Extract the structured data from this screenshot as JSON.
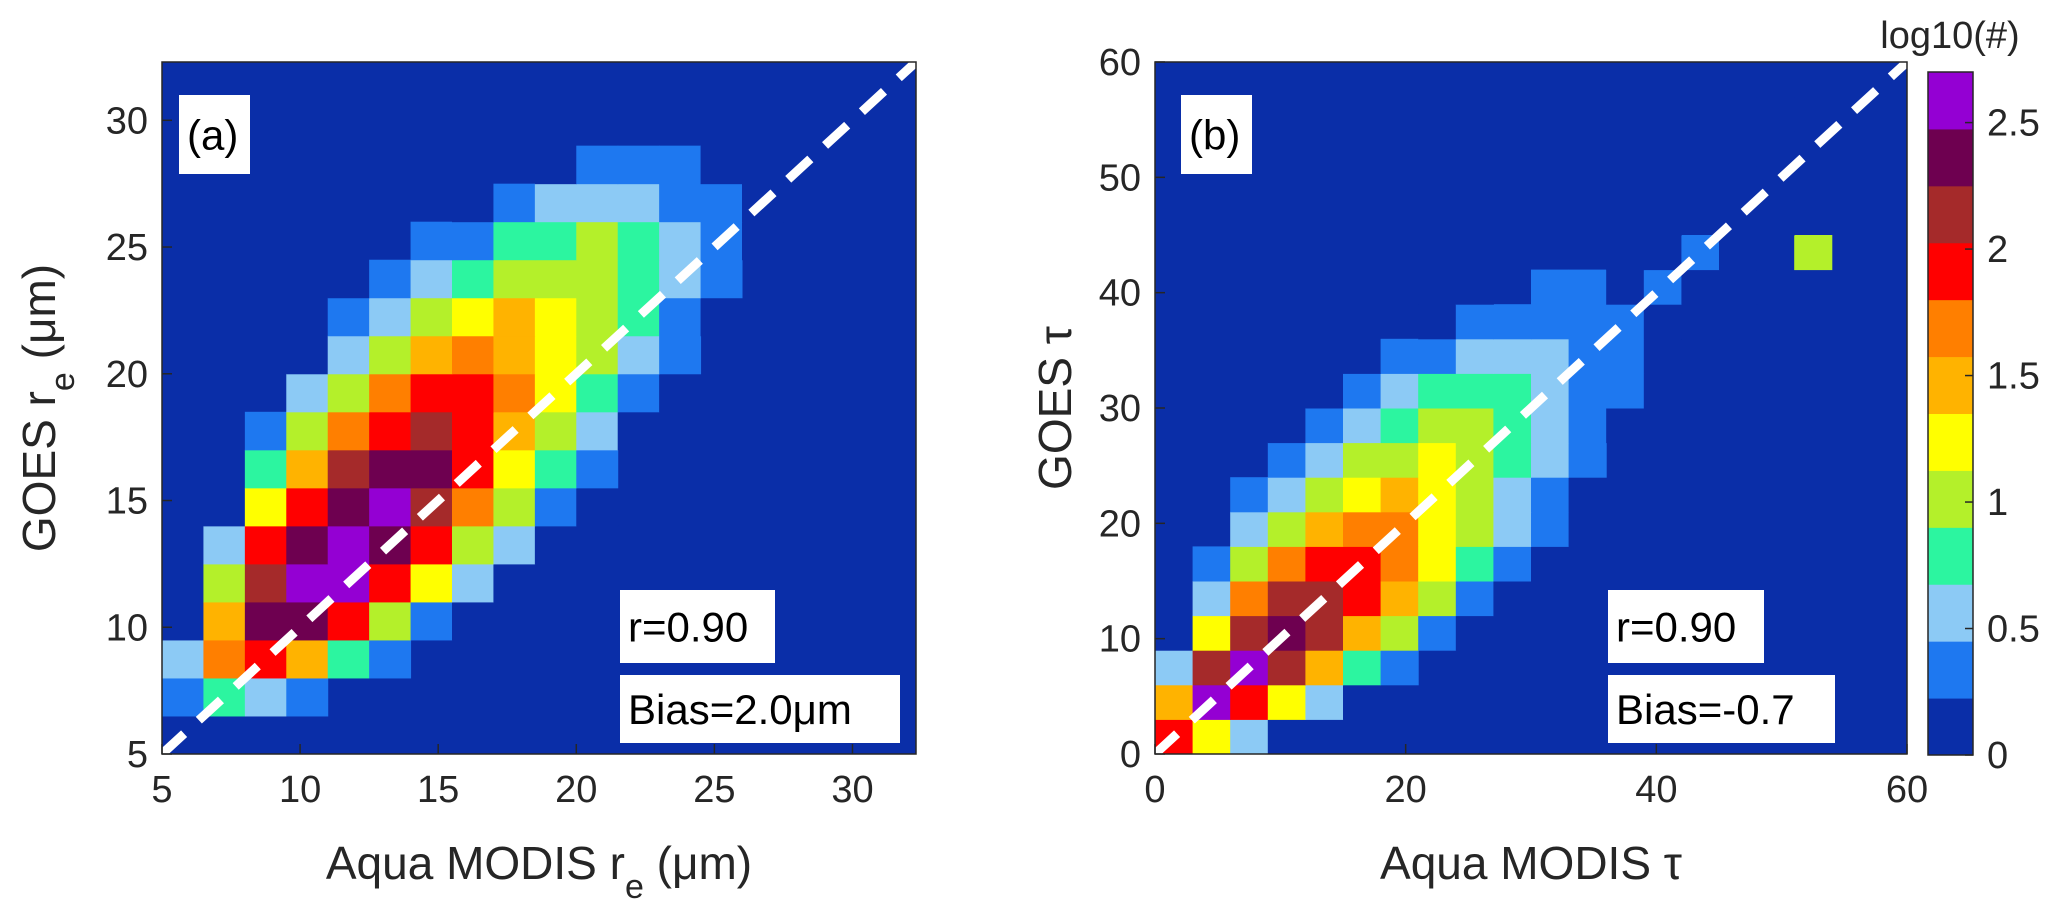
{
  "chart_data": [
    {
      "type": "hist2d",
      "annotation_tag": "(a)",
      "stats": [
        "r=0.90",
        "Bias=2.0μm"
      ],
      "xlabel": [
        "Aqua MODIS r",
        "e",
        " (μm)"
      ],
      "ylabel": [
        "GOES r",
        "e",
        " (μm)"
      ],
      "xlim": [
        5,
        32.3
      ],
      "ylim": [
        5,
        32.3
      ],
      "xticks": [
        5,
        10,
        15,
        20,
        25,
        30
      ],
      "yticks": [
        5,
        10,
        15,
        20,
        25,
        30
      ],
      "xbins": [
        5,
        6.5,
        8,
        9.5,
        11,
        12.5,
        14,
        15.5,
        17,
        18.5,
        20,
        21.5,
        23,
        24.5,
        26,
        27.5,
        29,
        30.5,
        32
      ],
      "ybins": [
        5,
        6.5,
        8,
        9.5,
        11,
        12.5,
        14,
        15.5,
        17,
        18.5,
        20,
        21.5,
        23,
        24.5,
        26,
        27.5,
        29,
        30.5,
        32
      ],
      "z": [
        [
          null,
          null,
          null,
          null,
          null,
          null,
          null,
          null,
          null,
          null,
          null,
          null,
          null,
          null,
          null,
          null,
          null,
          null
        ],
        [
          0.3,
          0.8,
          0.6,
          0.3,
          null,
          null,
          null,
          null,
          null,
          null,
          null,
          null,
          null,
          null,
          null,
          null,
          null,
          null
        ],
        [
          0.5,
          1.6,
          1.9,
          1.5,
          0.7,
          0.3,
          null,
          null,
          null,
          null,
          null,
          null,
          null,
          null,
          null,
          null,
          null,
          null
        ],
        [
          0.2,
          1.4,
          2.4,
          2.3,
          1.8,
          1.0,
          0.4,
          0.2,
          null,
          null,
          null,
          null,
          null,
          null,
          null,
          null,
          null,
          null
        ],
        [
          null,
          0.9,
          2.2,
          2.6,
          2.5,
          1.9,
          1.2,
          0.6,
          0.2,
          null,
          null,
          null,
          null,
          null,
          null,
          null,
          null,
          null
        ],
        [
          null,
          0.5,
          1.8,
          2.4,
          2.6,
          2.4,
          1.8,
          1.1,
          0.5,
          0.2,
          null,
          0.2,
          null,
          null,
          null,
          null,
          null,
          null
        ],
        [
          null,
          0.2,
          1.2,
          2.0,
          2.4,
          2.5,
          2.2,
          1.6,
          0.9,
          0.4,
          0.2,
          null,
          null,
          null,
          null,
          null,
          null,
          null
        ],
        [
          null,
          null,
          0.7,
          1.5,
          2.1,
          2.3,
          2.3,
          1.9,
          1.3,
          0.7,
          0.3,
          null,
          null,
          null,
          null,
          null,
          null,
          null
        ],
        [
          null,
          null,
          0.3,
          0.9,
          1.6,
          1.9,
          2.1,
          2.0,
          1.5,
          1.0,
          0.5,
          0.2,
          null,
          null,
          null,
          null,
          null,
          null
        ],
        [
          null,
          null,
          null,
          0.5,
          1.0,
          1.6,
          1.8,
          1.8,
          1.6,
          1.2,
          0.8,
          0.4,
          0.2,
          null,
          null,
          null,
          null,
          null
        ],
        [
          null,
          null,
          null,
          0.2,
          0.6,
          1.0,
          1.4,
          1.6,
          1.5,
          1.3,
          1.0,
          0.6,
          0.3,
          null,
          null,
          null,
          null,
          null
        ],
        [
          null,
          null,
          null,
          null,
          0.3,
          0.6,
          1.0,
          1.2,
          1.4,
          1.3,
          1.1,
          0.8,
          0.4,
          0.2,
          null,
          null,
          null,
          null
        ],
        [
          null,
          null,
          null,
          null,
          0.2,
          0.3,
          0.6,
          0.8,
          1.0,
          1.1,
          1.0,
          0.8,
          0.5,
          0.3,
          null,
          null,
          null,
          null
        ],
        [
          null,
          null,
          null,
          null,
          null,
          null,
          0.3,
          0.4,
          0.7,
          0.8,
          0.9,
          0.7,
          0.5,
          0.3,
          0.2,
          null,
          null,
          null
        ],
        [
          null,
          null,
          null,
          null,
          null,
          null,
          null,
          0.2,
          0.3,
          0.5,
          0.5,
          0.5,
          0.4,
          0.4,
          0.2,
          null,
          null,
          null
        ],
        [
          null,
          null,
          null,
          null,
          null,
          null,
          null,
          null,
          null,
          0.2,
          0.3,
          0.3,
          0.3,
          0.2,
          0.2,
          null,
          null,
          null
        ],
        [
          null,
          null,
          null,
          null,
          null,
          null,
          null,
          null,
          null,
          null,
          null,
          null,
          null,
          null,
          null,
          null,
          null,
          null
        ],
        [
          null,
          null,
          null,
          null,
          null,
          null,
          null,
          null,
          null,
          null,
          null,
          null,
          null,
          null,
          null,
          null,
          null,
          null
        ]
      ]
    },
    {
      "type": "hist2d",
      "annotation_tag": "(b)",
      "stats": [
        "r=0.90",
        "Bias=-0.7"
      ],
      "xlabel": [
        "Aqua MODIS τ"
      ],
      "ylabel": [
        "GOES τ"
      ],
      "xlim": [
        0,
        60
      ],
      "ylim": [
        0,
        60
      ],
      "xticks": [
        0,
        20,
        40,
        60
      ],
      "yticks": [
        0,
        10,
        20,
        30,
        40,
        50,
        60
      ],
      "xbins": [
        0,
        3,
        6,
        9,
        12,
        15,
        18,
        21,
        24,
        27,
        30,
        33,
        36,
        39,
        42,
        45,
        48,
        51,
        54,
        57,
        60
      ],
      "ybins": [
        0,
        3,
        6,
        9,
        12,
        15,
        18,
        21,
        24,
        27,
        30,
        33,
        36,
        39,
        42,
        45,
        48,
        51,
        54,
        57,
        60
      ],
      "z": [
        [
          1.9,
          1.2,
          0.5,
          0.2,
          null,
          null,
          null,
          null,
          null,
          null,
          null,
          null,
          null,
          null,
          null,
          null,
          null,
          null,
          null,
          null
        ],
        [
          1.5,
          2.6,
          2.0,
          1.2,
          0.5,
          0.2,
          null,
          null,
          null,
          null,
          null,
          null,
          null,
          null,
          null,
          null,
          null,
          null,
          null,
          null
        ],
        [
          0.6,
          2.1,
          2.5,
          2.1,
          1.4,
          0.7,
          0.3,
          null,
          null,
          null,
          null,
          null,
          null,
          null,
          null,
          null,
          null,
          null,
          null,
          null
        ],
        [
          0.2,
          1.3,
          2.2,
          2.4,
          2.1,
          1.5,
          0.9,
          0.4,
          0.2,
          null,
          null,
          null,
          null,
          null,
          null,
          null,
          null,
          null,
          null,
          null
        ],
        [
          null,
          0.6,
          1.6,
          2.1,
          2.2,
          1.9,
          1.4,
          0.9,
          0.4,
          0.2,
          null,
          0.2,
          null,
          null,
          null,
          null,
          null,
          null,
          null,
          null
        ],
        [
          null,
          0.3,
          1.0,
          1.6,
          1.9,
          1.9,
          1.6,
          1.2,
          0.7,
          0.4,
          0.2,
          null,
          0.2,
          null,
          null,
          null,
          null,
          null,
          null,
          null
        ],
        [
          null,
          null,
          0.5,
          1.1,
          1.4,
          1.7,
          1.6,
          1.3,
          0.9,
          0.5,
          0.3,
          0.2,
          null,
          null,
          null,
          null,
          null,
          null,
          null,
          null
        ],
        [
          null,
          null,
          0.3,
          0.6,
          1.0,
          1.3,
          1.4,
          1.3,
          1.0,
          0.6,
          0.4,
          0.2,
          null,
          null,
          null,
          null,
          null,
          null,
          null,
          null
        ],
        [
          null,
          null,
          null,
          0.3,
          0.6,
          0.9,
          1.1,
          1.2,
          1.0,
          0.7,
          0.5,
          0.3,
          null,
          null,
          null,
          null,
          null,
          null,
          null,
          null
        ],
        [
          null,
          null,
          null,
          0.2,
          0.3,
          0.6,
          0.8,
          0.9,
          0.9,
          0.8,
          0.6,
          0.3,
          0.2,
          null,
          null,
          null,
          null,
          null,
          null,
          null
        ],
        [
          null,
          null,
          null,
          null,
          0.2,
          0.3,
          0.5,
          0.7,
          0.7,
          0.8,
          0.6,
          0.4,
          0.3,
          0.2,
          null,
          null,
          null,
          null,
          null,
          null
        ],
        [
          null,
          null,
          null,
          null,
          null,
          0.2,
          0.3,
          0.4,
          0.5,
          0.5,
          0.5,
          0.4,
          0.3,
          0.2,
          0.2,
          null,
          null,
          null,
          null,
          null
        ],
        [
          null,
          null,
          null,
          null,
          null,
          null,
          null,
          0.2,
          0.3,
          0.3,
          0.4,
          0.3,
          0.3,
          0.2,
          0.2,
          0.2,
          null,
          null,
          null,
          null
        ],
        [
          null,
          null,
          null,
          null,
          null,
          null,
          null,
          null,
          0.2,
          null,
          0.3,
          0.3,
          0.2,
          0.3,
          0.2,
          0.2,
          0.2,
          null,
          null,
          null
        ],
        [
          null,
          null,
          null,
          null,
          null,
          null,
          null,
          null,
          null,
          null,
          null,
          null,
          0.2,
          0.2,
          0.3,
          0.2,
          0.2,
          0.9,
          null,
          null
        ],
        [
          null,
          null,
          null,
          null,
          null,
          null,
          null,
          null,
          null,
          null,
          null,
          0.2,
          null,
          0.2,
          null,
          0.2,
          0.2,
          null,
          null,
          null
        ],
        [
          null,
          null,
          null,
          null,
          null,
          null,
          null,
          null,
          null,
          null,
          0.2,
          null,
          null,
          null,
          0.2,
          null,
          0.2,
          null,
          null,
          null
        ],
        [
          null,
          null,
          null,
          null,
          null,
          null,
          null,
          null,
          null,
          null,
          null,
          null,
          null,
          null,
          0.2,
          null,
          0.2,
          null,
          null,
          null
        ],
        [
          null,
          null,
          null,
          null,
          null,
          null,
          null,
          null,
          null,
          null,
          null,
          null,
          null,
          null,
          null,
          null,
          0.2,
          null,
          null,
          null
        ],
        [
          null,
          null,
          null,
          null,
          null,
          null,
          null,
          null,
          null,
          null,
          null,
          null,
          null,
          null,
          null,
          null,
          0.2,
          null,
          null,
          null
        ]
      ]
    }
  ],
  "colorbar": {
    "label": "log10(#)",
    "clim": [
      0,
      2.7
    ],
    "ticks": [
      0,
      0.5,
      1,
      1.5,
      2,
      2.5
    ],
    "colors": [
      "#0a2ea8",
      "#1e78f0",
      "#8ccaf5",
      "#2cf5a0",
      "#b4f02a",
      "#ffff00",
      "#ffb300",
      "#ff7f00",
      "#ff0000",
      "#a52a2a",
      "#6e0050",
      "#9400d3"
    ]
  }
}
